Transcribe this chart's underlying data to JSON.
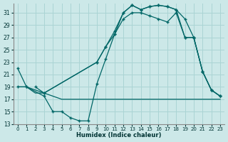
{
  "xlabel": "Humidex (Indice chaleur)",
  "bg_color": "#cce8e8",
  "grid_color": "#aad4d4",
  "line_color": "#006666",
  "xlim": [
    -0.5,
    23.5
  ],
  "ylim": [
    13,
    32.5
  ],
  "yticks": [
    13,
    15,
    17,
    19,
    21,
    23,
    25,
    27,
    29,
    31
  ],
  "xticks": [
    0,
    1,
    2,
    3,
    4,
    5,
    6,
    7,
    8,
    9,
    10,
    11,
    12,
    13,
    14,
    15,
    16,
    17,
    18,
    19,
    20,
    21,
    22,
    23
  ],
  "curve1_x": [
    0,
    1,
    3,
    4,
    5,
    6,
    7,
    8,
    9,
    10,
    11,
    12,
    13,
    14,
    15,
    16,
    17,
    18,
    19,
    20,
    21,
    22,
    23
  ],
  "curve1_y": [
    22,
    19,
    17.5,
    15,
    15,
    14,
    13.5,
    13.5,
    19.5,
    23.5,
    27.5,
    31,
    32.2,
    31.5,
    32,
    32.2,
    32,
    31.5,
    30,
    27,
    21.5,
    18.5,
    17.5
  ],
  "curve2_x": [
    2,
    3,
    9,
    10,
    11,
    12,
    13,
    14,
    15,
    16,
    17,
    18,
    19,
    20,
    21,
    22,
    23
  ],
  "curve2_y": [
    19,
    18,
    23,
    25.5,
    28,
    31,
    32.2,
    31.5,
    32,
    32.2,
    32,
    31.5,
    27,
    27,
    21.5,
    18.5,
    17.5
  ],
  "curve3_x": [
    0,
    1,
    3,
    9,
    10,
    11,
    12,
    13,
    14,
    15,
    16,
    17,
    18,
    19,
    20,
    21,
    22,
    23
  ],
  "curve3_y": [
    19,
    19,
    18,
    23,
    25.5,
    27.5,
    30,
    31,
    31,
    30.5,
    30,
    29.5,
    31,
    27,
    27,
    21.5,
    18.5,
    17.5
  ],
  "curve4_x": [
    0,
    1,
    2,
    3,
    4,
    5,
    6,
    7,
    8,
    9,
    10,
    11,
    12,
    13,
    14,
    15,
    16,
    17,
    18,
    19,
    20,
    21,
    22,
    23
  ],
  "curve4_y": [
    19.0,
    19.0,
    18.0,
    18.0,
    17.5,
    17.0,
    17.0,
    17.0,
    17.0,
    17.0,
    17.0,
    17.0,
    17.0,
    17.0,
    17.0,
    17.0,
    17.0,
    17.0,
    17.0,
    17.0,
    17.0,
    17.0,
    17.0,
    17.0
  ]
}
